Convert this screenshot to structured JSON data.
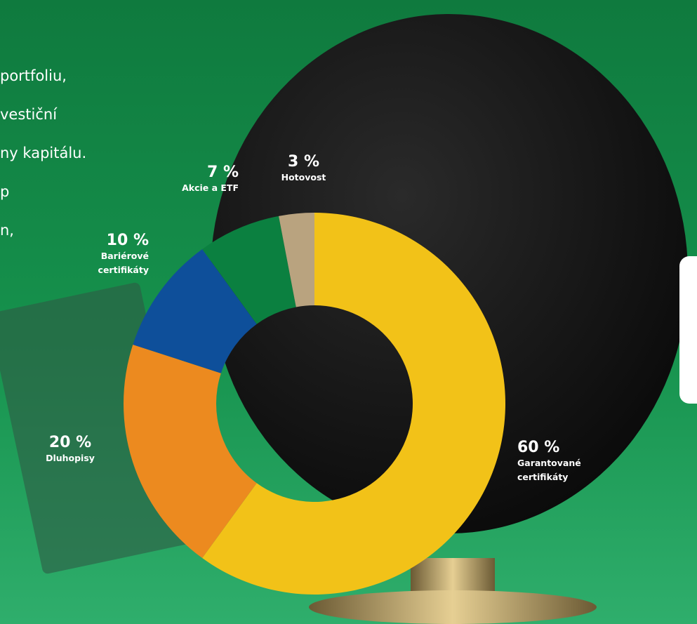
{
  "paragraph_lines": [
    "portfoliu,",
    "vestiční",
    "ny kapitálu.",
    "p",
    "n,"
  ],
  "chart_data": {
    "type": "donut",
    "categories": [
      "Garantované certifikáty",
      "Dluhopisy",
      "Bariérové certifikáty",
      "Akcie a ETF",
      "Hotovost"
    ],
    "values": [
      60,
      20,
      10,
      7,
      3
    ],
    "value_labels": [
      "60 %",
      "20 %",
      "10 %",
      "7 %",
      "3 %"
    ],
    "colors": [
      "#f2c218",
      "#ec8a1f",
      "#0e4f9a",
      "#0b8040",
      "#b9a37f"
    ]
  }
}
